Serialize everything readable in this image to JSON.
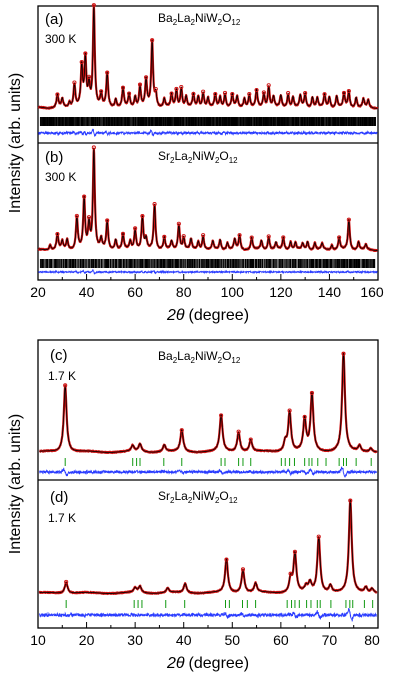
{
  "colors": {
    "observed": "#cc1111",
    "calculated": "#000000",
    "difference": "#2a3cff",
    "bragg_top": "#000000",
    "bragg_bottom": "#119911"
  },
  "axes": {
    "top": {
      "xlabel_symbol": "2θ",
      "xlabel_unit": "(degree)",
      "ylabel": "Intensity (arb. units)",
      "xlim": [
        20,
        160
      ],
      "xticks": [
        "20",
        "40",
        "60",
        "80",
        "100",
        "120",
        "140",
        "160"
      ]
    },
    "bottom": {
      "xlabel_symbol": "2θ",
      "xlabel_unit": "(degree)",
      "ylabel": "Intensity (arb. units)",
      "xlim": [
        10,
        80
      ],
      "xticks": [
        "10",
        "20",
        "30",
        "40",
        "50",
        "60",
        "70",
        "80"
      ]
    }
  },
  "panels": {
    "a": {
      "tag": "(a)",
      "temp": "300 K",
      "formula": [
        "Ba",
        "2",
        "La",
        "2",
        "NiW",
        "2",
        "O",
        "12"
      ]
    },
    "b": {
      "tag": "(b)",
      "temp": "300 K",
      "formula": [
        "Sr",
        "2",
        "La",
        "2",
        "NiW",
        "2",
        "O",
        "12"
      ]
    },
    "c": {
      "tag": "(c)",
      "temp": "1.7 K",
      "formula": [
        "Ba",
        "2",
        "La",
        "2",
        "NiW",
        "2",
        "O",
        "12"
      ]
    },
    "d": {
      "tag": "(d)",
      "temp": "1.7 K",
      "formula": [
        "Sr",
        "2",
        "La",
        "2",
        "NiW",
        "2",
        "O",
        "12"
      ]
    }
  },
  "chart_data": [
    {
      "panel": "(a)",
      "type": "line",
      "xlim": [
        20,
        160
      ],
      "compound": "Ba2La2NiW2O12",
      "temperature": "300 K",
      "baseline": 0.06,
      "peaks": [
        [
          28,
          0.12
        ],
        [
          30,
          0.08
        ],
        [
          33,
          0.05
        ],
        [
          35,
          0.22
        ],
        [
          38,
          0.38
        ],
        [
          39.5,
          0.45
        ],
        [
          41,
          0.2
        ],
        [
          43,
          0.95
        ],
        [
          46,
          0.12
        ],
        [
          48.5,
          0.32
        ],
        [
          52,
          0.08
        ],
        [
          55,
          0.18
        ],
        [
          57.5,
          0.12
        ],
        [
          60,
          0.1
        ],
        [
          62,
          0.2
        ],
        [
          64.5,
          0.26
        ],
        [
          67,
          0.62
        ],
        [
          68.5,
          0.12
        ],
        [
          72,
          0.08
        ],
        [
          75,
          0.12
        ],
        [
          77,
          0.16
        ],
        [
          79,
          0.18
        ],
        [
          81,
          0.1
        ],
        [
          84,
          0.12
        ],
        [
          86,
          0.1
        ],
        [
          88,
          0.14
        ],
        [
          90,
          0.09
        ],
        [
          93,
          0.12
        ],
        [
          95,
          0.1
        ],
        [
          97,
          0.13
        ],
        [
          100,
          0.12
        ],
        [
          102,
          0.1
        ],
        [
          105,
          0.09
        ],
        [
          107,
          0.12
        ],
        [
          110,
          0.16
        ],
        [
          113,
          0.13
        ],
        [
          115,
          0.2
        ],
        [
          117,
          0.1
        ],
        [
          120,
          0.11
        ],
        [
          123,
          0.13
        ],
        [
          125,
          0.1
        ],
        [
          128,
          0.11
        ],
        [
          130,
          0.13
        ],
        [
          133,
          0.1
        ],
        [
          135,
          0.09
        ],
        [
          138,
          0.12
        ],
        [
          140,
          0.1
        ],
        [
          143,
          0.11
        ],
        [
          146,
          0.13
        ],
        [
          148,
          0.15
        ],
        [
          151,
          0.1
        ],
        [
          154,
          0.08
        ],
        [
          156,
          0.07
        ]
      ],
      "width": 0.45,
      "reflections_per_degree": 4,
      "bragg_color": "black"
    },
    {
      "panel": "(b)",
      "type": "line",
      "xlim": [
        20,
        160
      ],
      "compound": "Sr2La2NiW2O12",
      "temperature": "300 K",
      "baseline": 0.05,
      "peaks": [
        [
          25,
          0.05
        ],
        [
          28,
          0.15
        ],
        [
          30,
          0.08
        ],
        [
          32,
          0.1
        ],
        [
          36,
          0.32
        ],
        [
          39,
          0.5
        ],
        [
          41,
          0.25
        ],
        [
          43,
          1.0
        ],
        [
          46,
          0.1
        ],
        [
          48.5,
          0.28
        ],
        [
          52,
          0.1
        ],
        [
          55,
          0.15
        ],
        [
          58,
          0.08
        ],
        [
          60,
          0.2
        ],
        [
          63,
          0.32
        ],
        [
          64.5,
          0.1
        ],
        [
          68,
          0.45
        ],
        [
          72,
          0.12
        ],
        [
          75,
          0.08
        ],
        [
          78,
          0.25
        ],
        [
          80,
          0.12
        ],
        [
          83,
          0.1
        ],
        [
          86,
          0.08
        ],
        [
          88,
          0.14
        ],
        [
          92,
          0.08
        ],
        [
          95,
          0.1
        ],
        [
          98,
          0.07
        ],
        [
          101,
          0.1
        ],
        [
          103,
          0.14
        ],
        [
          108,
          0.12
        ],
        [
          112,
          0.09
        ],
        [
          115,
          0.13
        ],
        [
          118,
          0.07
        ],
        [
          121,
          0.12
        ],
        [
          124,
          0.08
        ],
        [
          126,
          0.07
        ],
        [
          129,
          0.06
        ],
        [
          131,
          0.08
        ],
        [
          134,
          0.07
        ],
        [
          137,
          0.06
        ],
        [
          141,
          0.05
        ],
        [
          144,
          0.12
        ],
        [
          148,
          0.3
        ],
        [
          152,
          0.08
        ],
        [
          155,
          0.05
        ]
      ],
      "width": 0.45,
      "reflections_per_degree": 3,
      "bragg_color": "black"
    },
    {
      "panel": "(c)",
      "type": "line",
      "xlim": [
        10,
        80
      ],
      "compound": "Ba2La2NiW2O12",
      "temperature": "1.7 K",
      "baseline": 0.03,
      "peaks": [
        [
          15.6,
          0.68
        ],
        [
          29.5,
          0.06
        ],
        [
          31,
          0.08
        ],
        [
          36,
          0.07
        ],
        [
          39.6,
          0.22
        ],
        [
          47.7,
          0.37
        ],
        [
          51.3,
          0.2
        ],
        [
          53.8,
          0.12
        ],
        [
          60.9,
          0.1
        ],
        [
          61.8,
          0.4
        ],
        [
          64.9,
          0.32
        ],
        [
          66.4,
          0.58
        ],
        [
          72.9,
          1.0
        ],
        [
          76.2,
          0.06
        ],
        [
          78.5,
          0.04
        ]
      ],
      "width": 0.35,
      "reflections": [
        15.6,
        29.5,
        30.3,
        31,
        35.9,
        39.6,
        47.7,
        48.5,
        51.3,
        52.2,
        53.8,
        60.1,
        60.9,
        61.8,
        62.8,
        64.9,
        65.8,
        66.4,
        67.6,
        69.3,
        72,
        72.9,
        73.5,
        75.5,
        78.6
      ],
      "bragg_color": "green"
    },
    {
      "panel": "(d)",
      "type": "line",
      "xlim": [
        10,
        80
      ],
      "compound": "Sr2La2NiW2O12",
      "temperature": "1.7 K",
      "baseline": 0.03,
      "peaks": [
        [
          15.8,
          0.12
        ],
        [
          30,
          0.05
        ],
        [
          31,
          0.07
        ],
        [
          36.7,
          0.05
        ],
        [
          40.3,
          0.1
        ],
        [
          48.8,
          0.36
        ],
        [
          52.2,
          0.25
        ],
        [
          54.8,
          0.1
        ],
        [
          62,
          0.15
        ],
        [
          62.9,
          0.42
        ],
        [
          65.2,
          0.06
        ],
        [
          66,
          0.1
        ],
        [
          67.8,
          0.6
        ],
        [
          70.2,
          0.08
        ],
        [
          74.3,
          1.0
        ],
        [
          77.5,
          0.06
        ],
        [
          78.8,
          0.05
        ]
      ],
      "width": 0.35,
      "reflections": [
        15.8,
        29.8,
        30.6,
        31.4,
        36.3,
        40.2,
        48.6,
        49.4,
        52.1,
        53.1,
        54.8,
        61.3,
        62.2,
        62.9,
        63.8,
        65.3,
        66.2,
        67.5,
        68.1,
        70.3,
        73.4,
        74.2,
        74.8,
        77.2,
        78.9
      ],
      "bragg_color": "green"
    }
  ]
}
